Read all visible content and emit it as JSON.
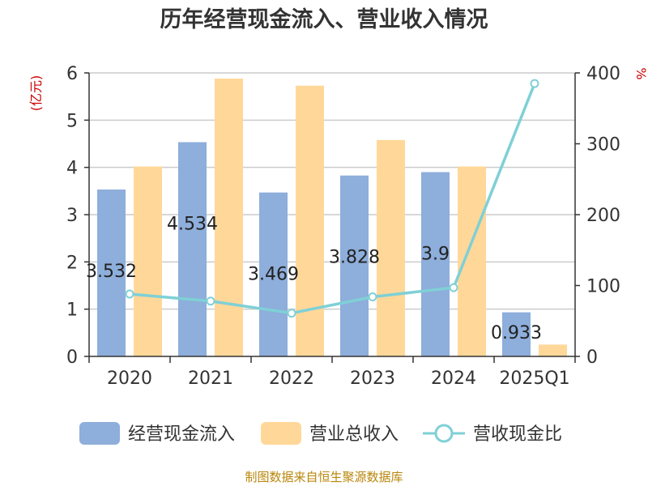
{
  "chart_data": {
    "type": "bar",
    "title": "历年经营现金流入、营业收入情况",
    "categories": [
      "2020",
      "2021",
      "2022",
      "2023",
      "2024",
      "2025Q1"
    ],
    "y_left": {
      "unit": "(亿元)",
      "min": 0,
      "max": 6,
      "ticks": [
        0,
        1,
        2,
        3,
        4,
        5,
        6
      ]
    },
    "y_right": {
      "unit": "%",
      "min": 0,
      "max": 400,
      "ticks": [
        0,
        100,
        200,
        300,
        400
      ]
    },
    "grid": true,
    "legend_position": "bottom",
    "series": [
      {
        "name": "经营现金流入",
        "kind": "bar",
        "axis": "left",
        "color": "#8eaedb",
        "values": [
          3.532,
          4.534,
          3.469,
          3.828,
          3.9,
          0.933
        ],
        "data_labels": [
          "3.532",
          "4.534",
          "3.469",
          "3.828",
          "3.9",
          "0.933"
        ]
      },
      {
        "name": "营业总收入",
        "kind": "bar",
        "axis": "left",
        "color": "#ffd899",
        "values": [
          4.02,
          5.88,
          5.73,
          4.58,
          4.02,
          0.25
        ]
      },
      {
        "name": "营收现金比",
        "kind": "line",
        "axis": "right",
        "color": "#7fd0d6",
        "values": [
          88,
          78,
          61,
          84,
          97,
          385
        ]
      }
    ]
  },
  "footer": {
    "source": "制图数据来自恒生聚源数据库"
  }
}
